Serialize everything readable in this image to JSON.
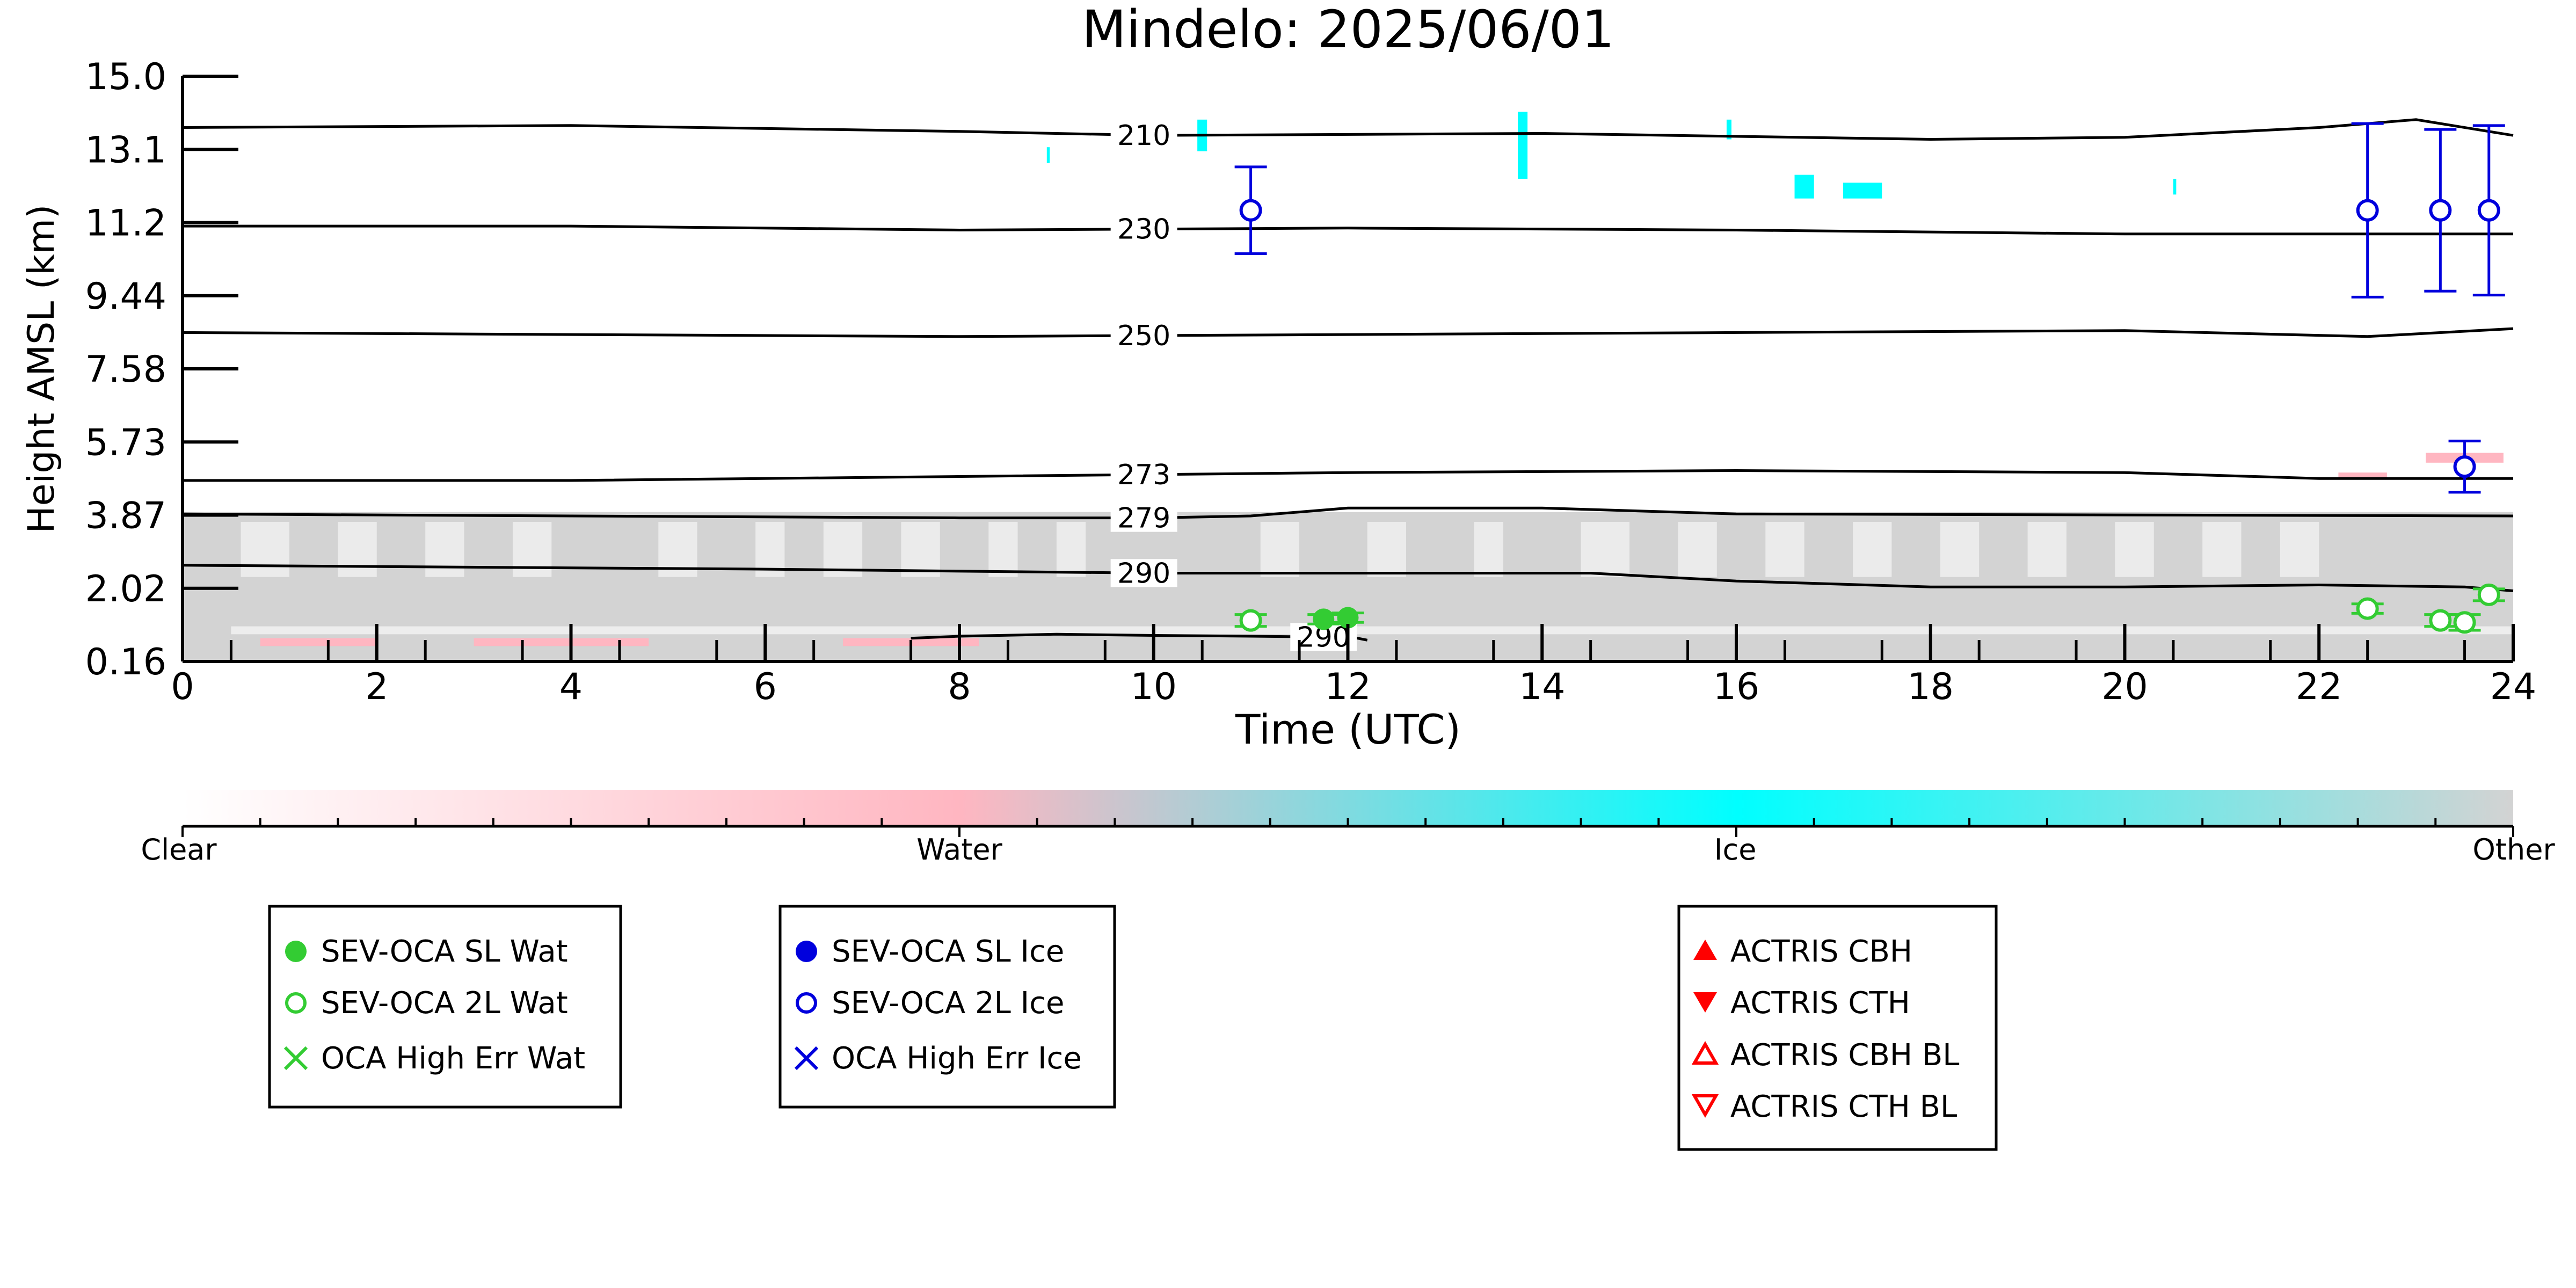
{
  "chart_data": {
    "type": "scatter",
    "title": "Mindelo: 2025/06/01",
    "xlabel": "Time (UTC)",
    "ylabel": "Height AMSL (km)",
    "xlim": [
      0,
      24
    ],
    "ylim": [
      0.16,
      15.0
    ],
    "x_ticks": [
      0,
      2,
      4,
      6,
      8,
      10,
      12,
      14,
      16,
      18,
      20,
      22,
      24
    ],
    "x_tick_labels": [
      "0",
      "2",
      "4",
      "6",
      "8",
      "10",
      "12",
      "14",
      "16",
      "18",
      "20",
      "22",
      "24"
    ],
    "y_tick_labels": [
      "0.16",
      "2.02",
      "3.87",
      "5.73",
      "7.58",
      "9.44",
      "11.2",
      "13.1",
      "15.0"
    ],
    "grid": false,
    "background_classification": {
      "colorbar_labels": [
        "Clear",
        "Water",
        "Ice",
        "Other"
      ],
      "colors": {
        "clear": "#ffffff",
        "water": "#ffb6c1",
        "ice": "#00ffff",
        "other": "#d3d3d3"
      }
    },
    "temperature_contours": [
      {
        "label": "210",
        "label_x": 9.9,
        "x": [
          0,
          4,
          8,
          10,
          14,
          18,
          20,
          22,
          23,
          24
        ],
        "y": [
          13.7,
          13.75,
          13.6,
          13.5,
          13.55,
          13.4,
          13.45,
          13.7,
          13.9,
          13.5
        ]
      },
      {
        "label": "230",
        "label_x": 9.9,
        "x": [
          0,
          4,
          8,
          12,
          16,
          20,
          24
        ],
        "y": [
          11.2,
          11.2,
          11.1,
          11.15,
          11.1,
          11.0,
          11.0
        ]
      },
      {
        "label": "250",
        "label_x": 9.9,
        "x": [
          0,
          4,
          8,
          12,
          16,
          20,
          22.5,
          24
        ],
        "y": [
          8.5,
          8.45,
          8.4,
          8.45,
          8.5,
          8.55,
          8.4,
          8.6
        ]
      },
      {
        "label": "273",
        "label_x": 9.9,
        "x": [
          0,
          4,
          8,
          12,
          16,
          20,
          22,
          24
        ],
        "y": [
          4.75,
          4.75,
          4.85,
          4.95,
          5.0,
          4.95,
          4.8,
          4.8
        ]
      },
      {
        "label": "279",
        "label_x": 9.9,
        "x": [
          0,
          4,
          8,
          10,
          11,
          12,
          14,
          16,
          24
        ],
        "y": [
          3.9,
          3.85,
          3.8,
          3.8,
          3.85,
          4.05,
          4.05,
          3.9,
          3.85
        ]
      },
      {
        "label": "290",
        "label_x": 9.9,
        "x": [
          0,
          6,
          10,
          12,
          14.5,
          16,
          18,
          20,
          22,
          23.5,
          24
        ],
        "y": [
          2.6,
          2.5,
          2.4,
          2.4,
          2.4,
          2.2,
          2.05,
          2.05,
          2.1,
          2.05,
          1.95
        ]
      },
      {
        "label": "290",
        "label_x": 11.75,
        "x": [
          7.5,
          8,
          9,
          10,
          11,
          11.8,
          12.1,
          12.2
        ],
        "y": [
          0.75,
          0.8,
          0.85,
          0.82,
          0.8,
          0.78,
          0.75,
          0.7
        ]
      }
    ],
    "series": [
      {
        "name": "SEV-OCA SL Wat",
        "marker": "filled-circle",
        "color": "#33cc33",
        "points": [
          {
            "x": 11.75,
            "y": 1.23,
            "yerr": 0.12
          },
          {
            "x": 12.0,
            "y": 1.27,
            "yerr": 0.12
          }
        ]
      },
      {
        "name": "SEV-OCA 2L Wat",
        "marker": "open-circle",
        "color": "#33cc33",
        "points": [
          {
            "x": 11.0,
            "y": 1.2,
            "yerr": 0.15
          },
          {
            "x": 22.5,
            "y": 1.5,
            "yerr": 0.12
          },
          {
            "x": 23.25,
            "y": 1.2,
            "yerr": 0.15
          },
          {
            "x": 23.5,
            "y": 1.15,
            "yerr": 0.2
          },
          {
            "x": 23.75,
            "y": 1.85,
            "yerr": 0.15
          }
        ]
      },
      {
        "name": "OCA High Err Wat",
        "marker": "x",
        "color": "#33cc33",
        "points": []
      },
      {
        "name": "SEV-OCA SL Ice",
        "marker": "filled-circle",
        "color": "#0000dd",
        "points": []
      },
      {
        "name": "SEV-OCA 2L Ice",
        "marker": "open-circle",
        "color": "#0000dd",
        "points": [
          {
            "x": 11.0,
            "y": 11.6,
            "yerr": 1.1
          },
          {
            "x": 22.5,
            "y": 11.6,
            "yerr": 2.2
          },
          {
            "x": 23.25,
            "y": 11.6,
            "yerr": 2.05
          },
          {
            "x": 23.75,
            "y": 11.6,
            "yerr": 2.15
          },
          {
            "x": 23.5,
            "y": 5.1,
            "yerr": 0.65
          }
        ]
      },
      {
        "name": "OCA High Err Ice",
        "marker": "x",
        "color": "#0000dd",
        "points": []
      },
      {
        "name": "ACTRIS CBH",
        "marker": "filled-triangle-up",
        "color": "#ff0000",
        "points": []
      },
      {
        "name": "ACTRIS CTH",
        "marker": "filled-triangle-down",
        "color": "#ff0000",
        "points": []
      },
      {
        "name": "ACTRIS CBH BL",
        "marker": "open-triangle-up",
        "color": "#ff0000",
        "points": []
      },
      {
        "name": "ACTRIS CTH BL",
        "marker": "open-triangle-down",
        "color": "#ff0000",
        "points": []
      }
    ],
    "legends": [
      [
        "SEV-OCA SL Wat",
        "SEV-OCA 2L Wat",
        "OCA High Err Wat"
      ],
      [
        "SEV-OCA SL Ice",
        "SEV-OCA 2L Ice",
        "OCA High Err Ice"
      ],
      [
        "ACTRIS CBH",
        "ACTRIS CTH",
        "ACTRIS CBH BL",
        "ACTRIS CTH BL"
      ]
    ]
  }
}
